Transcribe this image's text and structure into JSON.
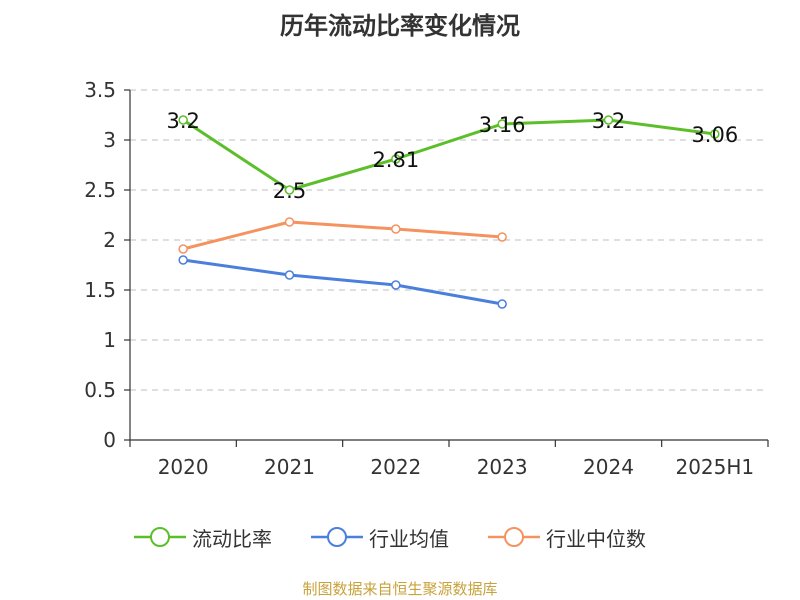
{
  "chart_data": {
    "type": "line",
    "title": "历年流动比率变化情况",
    "categories": [
      "2020",
      "2021",
      "2022",
      "2023",
      "2024",
      "2025H1"
    ],
    "ylim": [
      0,
      3.5
    ],
    "yticks": [
      "0",
      "0.5",
      "1",
      "1.5",
      "2",
      "2.5",
      "3",
      "3.5"
    ],
    "grid": true,
    "legend_position": "bottom",
    "series": [
      {
        "name": "流动比率",
        "color": "#5cbf2a",
        "values": [
          3.2,
          2.5,
          2.81,
          3.16,
          3.2,
          3.06
        ],
        "labels": [
          "3.2",
          "2.5",
          "2.81",
          "3.16",
          "3.2",
          "3.06"
        ]
      },
      {
        "name": "行业均值",
        "color": "#4a7fdc",
        "values": [
          1.8,
          1.65,
          1.55,
          1.36,
          null,
          null
        ]
      },
      {
        "name": "行业中位数",
        "color": "#f49260",
        "values": [
          1.91,
          2.18,
          2.11,
          2.03,
          null,
          null
        ]
      }
    ]
  },
  "source": "制图数据来自恒生聚源数据库"
}
